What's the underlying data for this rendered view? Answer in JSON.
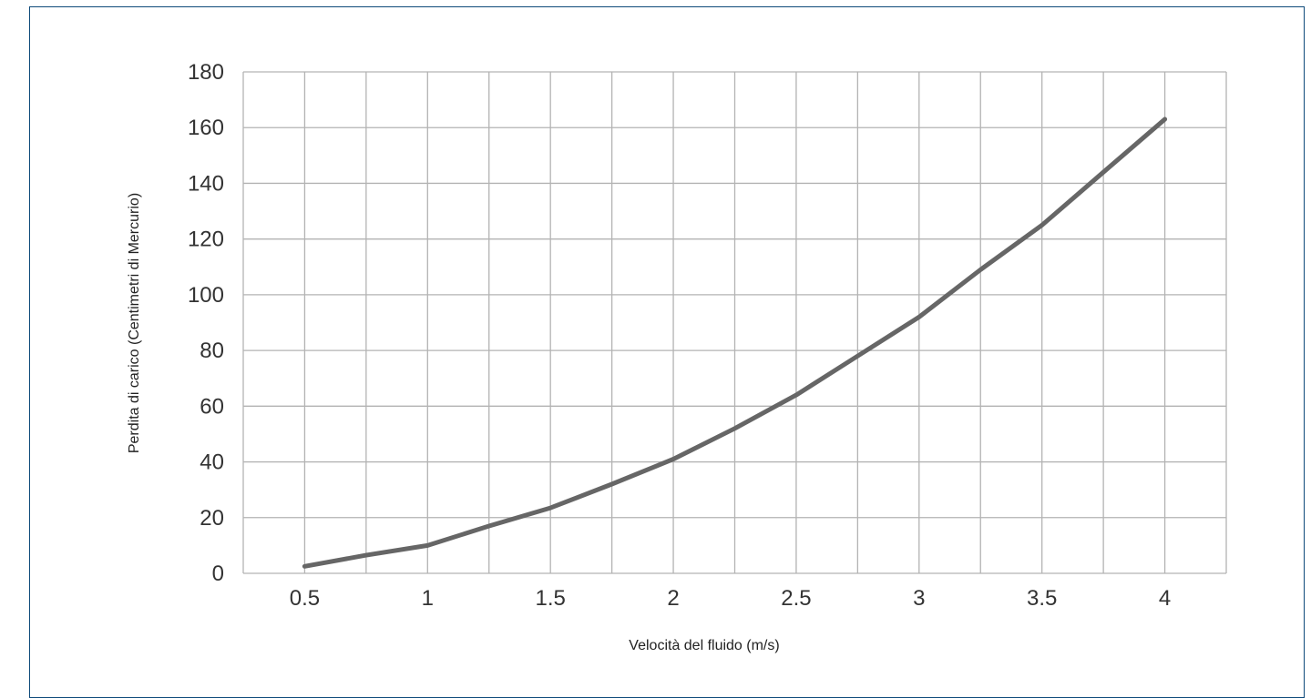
{
  "chart_data": {
    "type": "line",
    "title": "",
    "xlabel": "Velocità del fluido (m/s)",
    "ylabel": "Perdita di carico (Centimetri di Mercurio)",
    "x_ticks": [
      "0.5",
      "1",
      "1.5",
      "2",
      "2.5",
      "3",
      "3.5",
      "4"
    ],
    "y_ticks": [
      "0",
      "20",
      "40",
      "60",
      "80",
      "100",
      "120",
      "140",
      "160",
      "180"
    ],
    "xlim": [
      0.25,
      4.25
    ],
    "ylim": [
      0,
      180
    ],
    "grid": true,
    "legend": "none",
    "series": [
      {
        "color": "#666666",
        "points": [
          {
            "x": 0.5,
            "y": 2.5
          },
          {
            "x": 0.75,
            "y": 6.5
          },
          {
            "x": 1.0,
            "y": 10
          },
          {
            "x": 1.25,
            "y": 17
          },
          {
            "x": 1.5,
            "y": 23.5
          },
          {
            "x": 1.75,
            "y": 32
          },
          {
            "x": 2.0,
            "y": 41
          },
          {
            "x": 2.25,
            "y": 52
          },
          {
            "x": 2.5,
            "y": 64
          },
          {
            "x": 2.75,
            "y": 78
          },
          {
            "x": 3.0,
            "y": 92
          },
          {
            "x": 3.25,
            "y": 109
          },
          {
            "x": 3.5,
            "y": 125
          },
          {
            "x": 3.75,
            "y": 144
          },
          {
            "x": 4.0,
            "y": 163
          }
        ]
      }
    ]
  }
}
